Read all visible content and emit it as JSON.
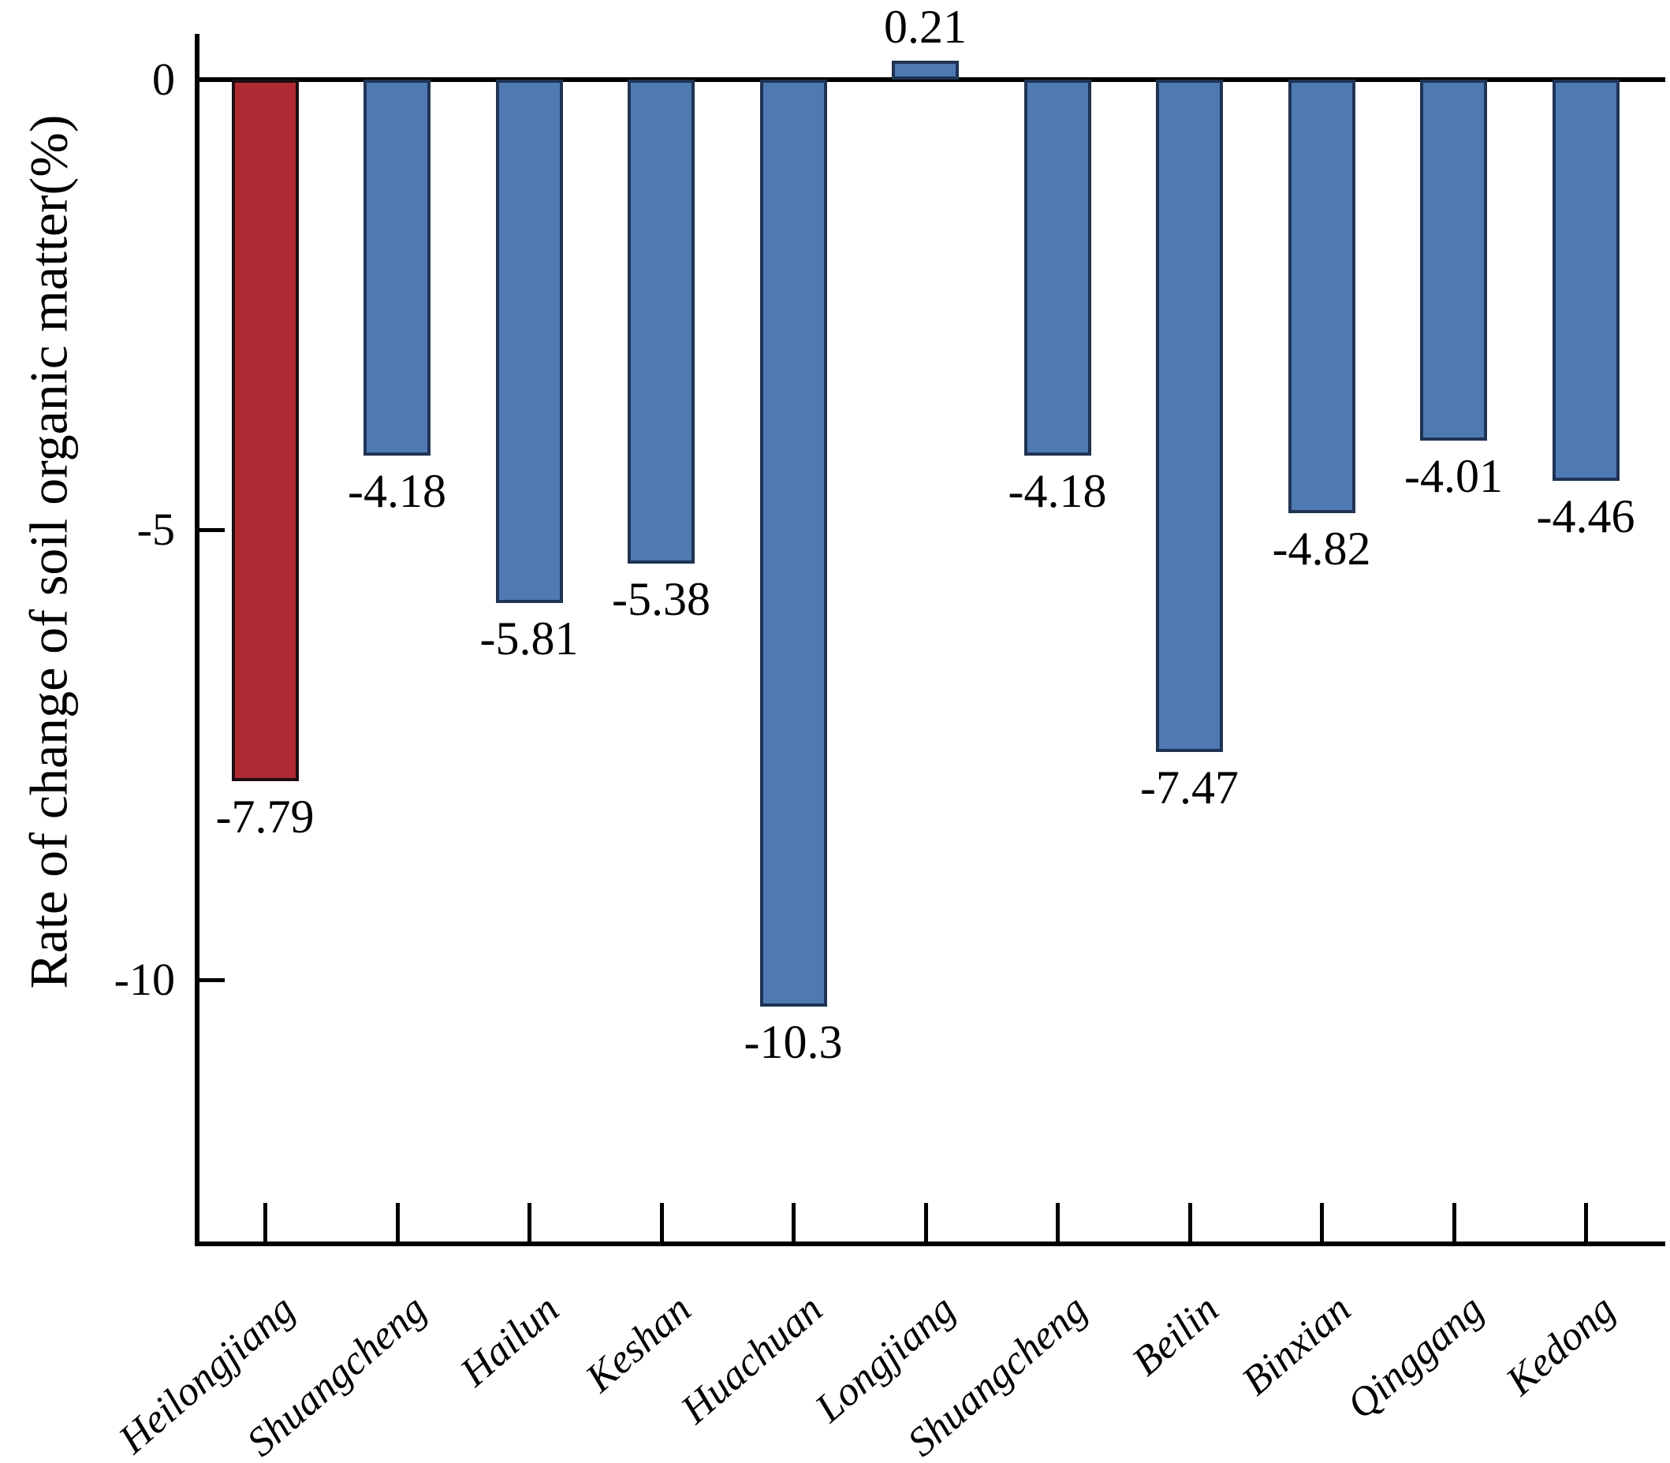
{
  "figure": {
    "background": "#ffffff"
  },
  "chart_data": {
    "type": "bar",
    "orientation": "vertical",
    "title": "",
    "xlabel": "",
    "ylabel": "Rate of change of soil organic matter(%)",
    "categories": [
      "Heilongjiang",
      "Shuangcheng",
      "Hailun",
      "Keshan",
      "Huachuan",
      "Longjiang",
      "Shuangcheng",
      "Beilin",
      "Binxian",
      "Qinggang",
      "Kedong"
    ],
    "values": [
      -7.79,
      -4.18,
      -5.81,
      -5.38,
      -10.3,
      0.21,
      -4.18,
      -7.47,
      -4.82,
      -4.01,
      -4.46
    ],
    "value_labels": [
      "-7.79",
      "-4.18",
      "-5.81",
      "-5.38",
      "-10.3",
      "0.21",
      "-4.18",
      "-7.47",
      "-4.82",
      "-4.01",
      "-4.46"
    ],
    "bar_colors": [
      "#b02a33",
      "#4e79b3",
      "#4e79b3",
      "#4e79b3",
      "#4e79b3",
      "#4e79b3",
      "#4e79b3",
      "#4e79b3",
      "#4e79b3",
      "#4e79b3",
      "#4e79b3"
    ],
    "bar_border_colors": [
      "#1d0d10",
      "#1f3353",
      "#1f3353",
      "#1f3353",
      "#1f3353",
      "#1f3353",
      "#1f3353",
      "#1f3353",
      "#1f3353",
      "#1f3353",
      "#1f3353"
    ],
    "highlight_index": 0,
    "yticks": [
      {
        "label": "0",
        "value": 0,
        "tick": false
      },
      {
        "label": "-5",
        "value": -5,
        "tick": true
      },
      {
        "label": "-10",
        "value": -10,
        "tick": true
      }
    ],
    "ylim": [
      -12.9,
      1.5
    ],
    "grid": false,
    "legend": "none"
  },
  "colors": {
    "default_bar": "#4e79b3",
    "highlight_bar": "#b02a33",
    "axis": "#000000",
    "text": "#000000",
    "background": "#ffffff"
  }
}
